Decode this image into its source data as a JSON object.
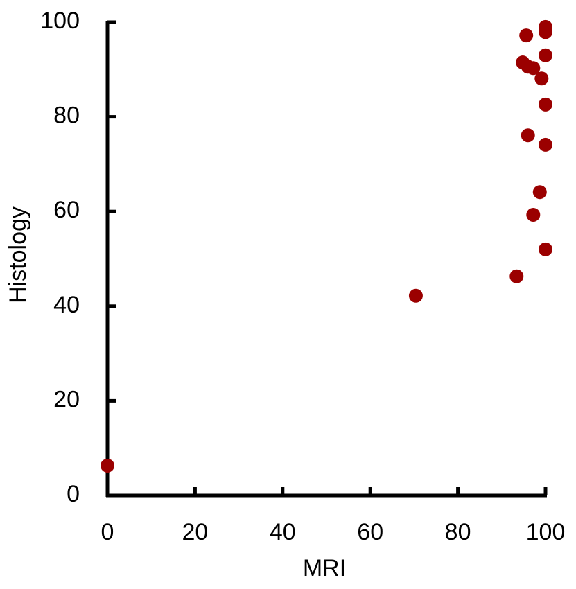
{
  "chart_data": {
    "type": "scatter",
    "x_label": "MRI",
    "y_label": "Histology",
    "color": "#9b0000",
    "x": [
      0,
      70.4,
      93.4,
      100,
      97.2,
      98.7,
      100,
      96.0,
      100,
      99.1,
      97.2,
      96.0,
      94.8,
      100,
      95.6,
      100,
      100
    ],
    "values": [
      6.3,
      42.2,
      46.3,
      52.0,
      59.3,
      64.1,
      74.1,
      76.1,
      82.6,
      88.1,
      90.3,
      90.6,
      91.5,
      93.0,
      97.2,
      97.9,
      99.0
    ],
    "xlim": [
      0,
      100
    ],
    "ylim": [
      0,
      100
    ],
    "xticks": [
      0,
      20,
      40,
      60,
      80,
      100
    ],
    "yticks": [
      0,
      20,
      40,
      60,
      80,
      100
    ]
  }
}
